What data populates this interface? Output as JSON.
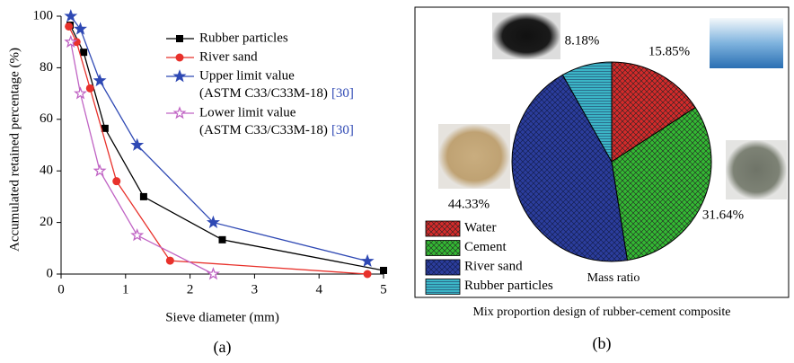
{
  "chart_data": [
    {
      "type": "line",
      "caption": "(a)",
      "x_label": "Sieve diameter (mm)",
      "y_label": "Accumulated retained percentage (%)",
      "xlim": [
        0,
        5
      ],
      "xticks": [
        0,
        1,
        2,
        3,
        4,
        5
      ],
      "ylim": [
        0,
        100
      ],
      "yticks": [
        0,
        20,
        40,
        60,
        80,
        100
      ],
      "series": [
        {
          "name": "Rubber particles",
          "color": "#000000",
          "marker": "square",
          "x": [
            0.14,
            0.35,
            0.68,
            1.28,
            2.5,
            5
          ],
          "values": [
            96.5,
            86,
            56.5,
            30,
            13.3,
            1.4
          ]
        },
        {
          "name": "River sand",
          "color": "#e8312b",
          "marker": "circle",
          "x": [
            0.12,
            0.24,
            0.45,
            0.86,
            1.69,
            4.75
          ],
          "values": [
            96,
            90,
            72,
            36,
            5.2,
            0
          ]
        },
        {
          "name": "Upper limit value",
          "name_line2": "(ASTM C33/C33M-18)",
          "ref": "[30]",
          "color": "#2f49b4",
          "marker": "star",
          "x": [
            0.15,
            0.3,
            0.6,
            1.18,
            2.36,
            4.75
          ],
          "values": [
            100,
            95,
            75,
            50,
            20,
            5
          ]
        },
        {
          "name": "Lower limit value",
          "name_line2": "(ASTM C33/C33M-18)",
          "ref": "[30]",
          "color": "#c064c4",
          "marker": "star",
          "x": [
            0.15,
            0.3,
            0.6,
            1.18,
            2.36
          ],
          "values": [
            90,
            70,
            40,
            15,
            0
          ]
        }
      ]
    },
    {
      "type": "pie",
      "title": "Mix proportion design of rubber-cement composite",
      "caption": "(b)",
      "center_label": "Mass ratio",
      "categories": [
        "Water",
        "Cement",
        "River sand",
        "Rubber particles"
      ],
      "values": [
        15.85,
        31.64,
        44.33,
        8.18
      ],
      "value_labels": [
        "15.85%",
        "31.64%",
        "44.33%",
        "8.18%"
      ],
      "colors": [
        "#d42a2a",
        "#33b833",
        "#2b3d9c",
        "#3bb5c6"
      ]
    }
  ]
}
